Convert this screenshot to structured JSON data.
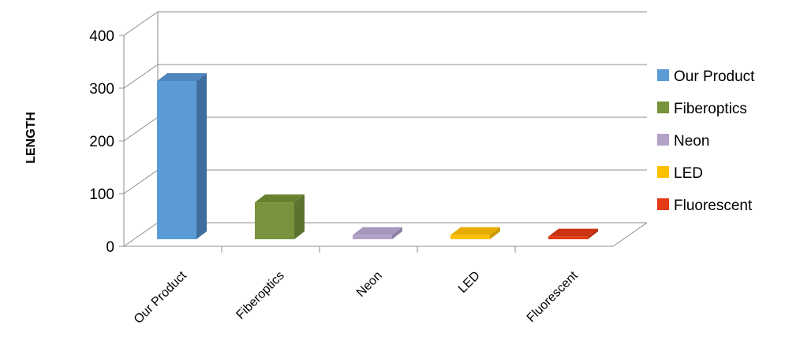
{
  "chart_data": {
    "type": "bar",
    "categories": [
      "Our Product",
      "Fiberoptics",
      "Neon",
      "LED",
      "Fluorescent"
    ],
    "values": [
      300,
      70,
      8,
      8,
      5
    ],
    "xlabel": "",
    "ylabel": "LENGTH",
    "ylim": [
      0,
      400
    ],
    "yticks": [
      0,
      100,
      200,
      300,
      400
    ],
    "grid": true,
    "legend": "right",
    "colors": [
      "#5b9bd5",
      "#77933c",
      "#b3a2c7",
      "#ffc000",
      "#e53b17"
    ],
    "side_colors": [
      "#3f6e9e",
      "#5a7130",
      "#8d7fa3",
      "#c99900",
      "#b02c10"
    ],
    "top_colors": [
      "#4f86bd",
      "#67822f",
      "#a796bd",
      "#e6ad00",
      "#cc3311"
    ]
  }
}
